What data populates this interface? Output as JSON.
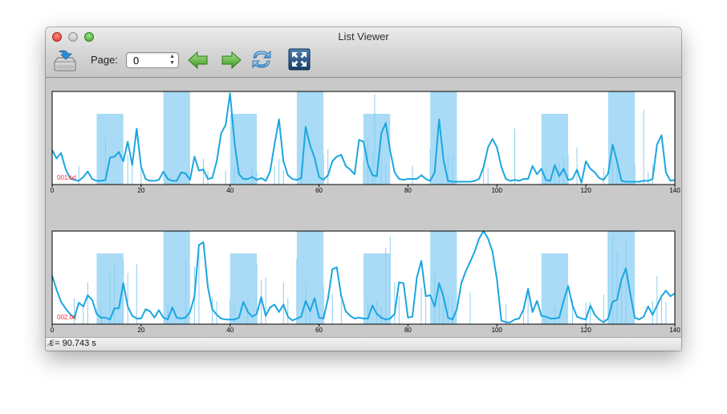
{
  "window": {
    "title": "List Viewer"
  },
  "toolbar": {
    "page_label": "Page:",
    "page_value": "0",
    "icons": [
      "export-tray-icon",
      "previous-arrow-icon",
      "next-arrow-icon",
      "refresh-icon",
      "fullscreen-icon"
    ]
  },
  "status": {
    "text": "t = 90.743 s"
  },
  "colors": {
    "trace": "#1ba6e0",
    "band": "#a9dbf6",
    "spike": "#8ccdf0",
    "label": "#ff2a2a"
  },
  "chart_data": [
    {
      "type": "line",
      "label": "001.txt",
      "xlim": [
        0,
        140
      ],
      "xticks": [
        0,
        20,
        40,
        60,
        80,
        100,
        120,
        140
      ],
      "bands": [
        [
          10,
          16
        ],
        [
          25,
          31
        ],
        [
          40,
          46
        ],
        [
          55,
          61
        ],
        [
          70,
          76
        ],
        [
          85,
          91
        ],
        [
          110,
          116
        ],
        [
          125,
          131
        ]
      ],
      "bandTops": [
        0.24,
        0.0,
        0.24,
        0.0,
        0.24,
        0.0,
        0.24,
        0.0
      ],
      "spikes": [
        [
          6,
          0.8
        ],
        [
          12,
          0.5
        ],
        [
          17,
          0.68
        ],
        [
          18,
          0.75
        ],
        [
          20,
          0.78
        ],
        [
          34,
          0.72
        ],
        [
          35,
          0.85
        ],
        [
          39,
          0.85
        ],
        [
          41,
          0.8
        ],
        [
          45,
          0.8
        ],
        [
          46,
          0.86
        ],
        [
          50,
          0.8
        ],
        [
          51,
          0.72
        ],
        [
          52,
          0.85
        ],
        [
          56,
          0.8
        ],
        [
          61,
          0.68
        ],
        [
          62,
          0.62
        ],
        [
          70,
          0.74
        ],
        [
          71,
          0.5
        ],
        [
          72,
          0.66
        ],
        [
          72.5,
          0.03
        ],
        [
          74,
          0.73
        ],
        [
          75,
          0.78
        ],
        [
          81,
          0.8
        ],
        [
          85,
          0.62
        ],
        [
          89,
          0.68
        ],
        [
          90,
          0.71
        ],
        [
          97,
          0.78
        ],
        [
          98,
          0.83
        ],
        [
          104,
          0.4
        ],
        [
          111,
          0.8
        ],
        [
          113,
          0.78
        ],
        [
          114,
          0.76
        ],
        [
          115,
          0.71
        ],
        [
          116,
          0.68
        ],
        [
          118,
          0.6
        ],
        [
          124,
          0.82
        ],
        [
          126,
          0.72
        ],
        [
          127,
          0.8
        ],
        [
          131,
          0.79
        ],
        [
          133,
          0.2
        ],
        [
          134,
          0.86
        ],
        [
          135,
          0.79
        ]
      ],
      "x": [
        0,
        1,
        2,
        3,
        4,
        5,
        6,
        7,
        8,
        9,
        10,
        11,
        12,
        13,
        14,
        15,
        16,
        17,
        18,
        19,
        20,
        21,
        22,
        23,
        24,
        25,
        26,
        27,
        28,
        29,
        30,
        31,
        32,
        33,
        34,
        35,
        36,
        37,
        38,
        39,
        40,
        41,
        42,
        43,
        44,
        45,
        46,
        47,
        48,
        49,
        50,
        51,
        52,
        53,
        54,
        55,
        56,
        57,
        58,
        59,
        60,
        61,
        62,
        63,
        64,
        65,
        66,
        67,
        68,
        69,
        70,
        71,
        72,
        73,
        74,
        75,
        76,
        77,
        78,
        79,
        80,
        81,
        82,
        83,
        84,
        85,
        86,
        87,
        88,
        89,
        90,
        91,
        92,
        93,
        94,
        95,
        96,
        97,
        98,
        99,
        100,
        101,
        102,
        103,
        104,
        105,
        106,
        107,
        108,
        109,
        110,
        111,
        112,
        113,
        114,
        115,
        116,
        117,
        118,
        119,
        120,
        121,
        122,
        123,
        124,
        125,
        126,
        127,
        128,
        129,
        130,
        131,
        132,
        133,
        134,
        135,
        136,
        137,
        138,
        139,
        140
      ],
      "y": [
        0.37,
        0.28,
        0.34,
        0.17,
        0.07,
        0.05,
        0.04,
        0.08,
        0.14,
        0.06,
        0.04,
        0.04,
        0.05,
        0.29,
        0.3,
        0.35,
        0.25,
        0.46,
        0.21,
        0.6,
        0.19,
        0.06,
        0.04,
        0.04,
        0.05,
        0.14,
        0.06,
        0.04,
        0.04,
        0.13,
        0.12,
        0.05,
        0.3,
        0.15,
        0.16,
        0.06,
        0.07,
        0.25,
        0.55,
        0.64,
        0.98,
        0.45,
        0.11,
        0.06,
        0.06,
        0.08,
        0.05,
        0.07,
        0.04,
        0.14,
        0.43,
        0.7,
        0.25,
        0.1,
        0.06,
        0.05,
        0.07,
        0.62,
        0.42,
        0.29,
        0.08,
        0.05,
        0.1,
        0.25,
        0.3,
        0.32,
        0.2,
        0.16,
        0.11,
        0.48,
        0.46,
        0.22,
        0.1,
        0.09,
        0.55,
        0.66,
        0.36,
        0.13,
        0.06,
        0.05,
        0.06,
        0.06,
        0.06,
        0.1,
        0.06,
        0.04,
        0.13,
        0.7,
        0.26,
        0.04,
        0.03,
        0.03,
        0.03,
        0.03,
        0.03,
        0.04,
        0.06,
        0.19,
        0.4,
        0.49,
        0.4,
        0.19,
        0.06,
        0.04,
        0.05,
        0.04,
        0.06,
        0.06,
        0.2,
        0.11,
        0.17,
        0.05,
        0.04,
        0.21,
        0.09,
        0.17,
        0.05,
        0.06,
        0.16,
        0.02,
        0.25,
        0.17,
        0.13,
        0.07,
        0.05,
        0.12,
        0.43,
        0.25,
        0.04,
        0.03,
        0.03,
        0.03,
        0.03,
        0.04,
        0.04,
        0.06,
        0.43,
        0.53,
        0.13,
        0.04,
        0.05
      ]
    },
    {
      "type": "line",
      "label": "002.txt",
      "xlim": [
        0,
        140
      ],
      "xticks": [
        0,
        20,
        40,
        60,
        80,
        100,
        120,
        140
      ],
      "bands": [
        [
          10,
          16
        ],
        [
          25,
          31
        ],
        [
          40,
          46
        ],
        [
          55,
          61
        ],
        [
          70,
          76
        ],
        [
          85,
          91
        ],
        [
          110,
          116
        ],
        [
          125,
          131
        ]
      ],
      "bandTops": [
        0.24,
        0.0,
        0.24,
        0.0,
        0.24,
        0.0,
        0.24,
        0.0
      ],
      "spikes": [
        [
          5,
          0.72
        ],
        [
          7,
          0.8
        ],
        [
          8,
          0.55
        ],
        [
          11,
          0.74
        ],
        [
          13,
          0.46
        ],
        [
          14,
          0.35
        ],
        [
          16,
          0.3
        ],
        [
          17,
          0.45
        ],
        [
          19,
          0.35
        ],
        [
          26,
          0.78
        ],
        [
          30,
          0.3
        ],
        [
          32,
          0.38
        ],
        [
          33,
          0.16
        ],
        [
          36,
          0.72
        ],
        [
          37,
          0.75
        ],
        [
          40,
          0.74
        ],
        [
          41,
          0.76
        ],
        [
          44,
          0.72
        ],
        [
          46,
          0.35
        ],
        [
          47,
          0.52
        ],
        [
          48,
          0.5
        ],
        [
          52,
          0.55
        ],
        [
          53,
          0.72
        ],
        [
          55,
          0.3
        ],
        [
          57,
          0.55
        ],
        [
          58,
          0.78
        ],
        [
          61,
          0.58
        ],
        [
          63,
          0.67
        ],
        [
          65,
          0.75
        ],
        [
          71,
          0.76
        ],
        [
          73,
          0.75
        ],
        [
          74,
          0.81
        ],
        [
          75,
          0.18
        ],
        [
          76,
          0.06
        ],
        [
          77,
          0.55
        ],
        [
          78,
          0.7
        ],
        [
          83,
          0.61
        ],
        [
          84,
          0.72
        ],
        [
          86,
          0.45
        ],
        [
          87,
          0.6
        ],
        [
          88,
          0.6
        ],
        [
          89,
          0.69
        ],
        [
          90,
          0.7
        ],
        [
          94,
          0.66
        ],
        [
          102,
          0.78
        ],
        [
          106,
          0.8
        ],
        [
          107,
          0.64
        ],
        [
          111,
          0.92
        ],
        [
          113,
          0.81
        ],
        [
          117,
          0.74
        ],
        [
          120,
          0.77
        ],
        [
          121,
          0.76
        ],
        [
          124,
          0.68
        ],
        [
          125,
          0.02
        ],
        [
          126,
          0.05
        ],
        [
          127,
          0.22
        ],
        [
          128,
          0.57
        ],
        [
          129,
          0.1
        ],
        [
          135,
          0.75
        ],
        [
          136,
          0.48
        ],
        [
          137,
          0.73
        ],
        [
          138,
          0.76
        ]
      ],
      "x": [
        0,
        1,
        2,
        3,
        4,
        5,
        6,
        7,
        8,
        9,
        10,
        11,
        12,
        13,
        14,
        15,
        16,
        17,
        18,
        19,
        20,
        21,
        22,
        23,
        24,
        25,
        26,
        27,
        28,
        29,
        30,
        31,
        32,
        33,
        34,
        35,
        36,
        37,
        38,
        39,
        40,
        41,
        42,
        43,
        44,
        45,
        46,
        47,
        48,
        49,
        50,
        51,
        52,
        53,
        54,
        55,
        56,
        57,
        58,
        59,
        60,
        61,
        62,
        63,
        64,
        65,
        66,
        67,
        68,
        69,
        70,
        71,
        72,
        73,
        74,
        75,
        76,
        77,
        78,
        79,
        80,
        81,
        82,
        83,
        84,
        85,
        86,
        87,
        88,
        89,
        90,
        91,
        92,
        93,
        94,
        95,
        96,
        97,
        98,
        99,
        100,
        101,
        102,
        103,
        104,
        105,
        106,
        107,
        108,
        109,
        110,
        111,
        112,
        113,
        114,
        115,
        116,
        117,
        118,
        119,
        120,
        121,
        122,
        123,
        124,
        125,
        126,
        127,
        128,
        129,
        130,
        131,
        132,
        133,
        134,
        135,
        136,
        137,
        138,
        139,
        140
      ],
      "y": [
        0.52,
        0.37,
        0.24,
        0.17,
        0.11,
        0.07,
        0.23,
        0.19,
        0.31,
        0.26,
        0.11,
        0.07,
        0.07,
        0.05,
        0.17,
        0.17,
        0.44,
        0.19,
        0.09,
        0.06,
        0.06,
        0.16,
        0.14,
        0.07,
        0.15,
        0.07,
        0.05,
        0.18,
        0.07,
        0.06,
        0.07,
        0.13,
        0.3,
        0.85,
        0.88,
        0.4,
        0.16,
        0.1,
        0.06,
        0.05,
        0.05,
        0.05,
        0.07,
        0.24,
        0.13,
        0.08,
        0.11,
        0.29,
        0.09,
        0.18,
        0.21,
        0.13,
        0.21,
        0.08,
        0.04,
        0.06,
        0.08,
        0.25,
        0.14,
        0.28,
        0.07,
        0.06,
        0.27,
        0.59,
        0.61,
        0.3,
        0.14,
        0.09,
        0.06,
        0.07,
        0.06,
        0.06,
        0.2,
        0.11,
        0.07,
        0.05,
        0.06,
        0.11,
        0.45,
        0.44,
        0.07,
        0.08,
        0.5,
        0.68,
        0.3,
        0.31,
        0.19,
        0.44,
        0.29,
        0.07,
        0.05,
        0.16,
        0.44,
        0.57,
        0.67,
        0.78,
        0.92,
        1.0,
        0.92,
        0.78,
        0.48,
        0.04,
        0.02,
        0.02,
        0.05,
        0.06,
        0.16,
        0.38,
        0.13,
        0.25,
        0.09,
        0.08,
        0.06,
        0.06,
        0.07,
        0.25,
        0.41,
        0.2,
        0.08,
        0.06,
        0.05,
        0.2,
        0.1,
        0.05,
        0.02,
        0.06,
        0.24,
        0.26,
        0.48,
        0.6,
        0.32,
        0.07,
        0.05,
        0.08,
        0.19,
        0.1,
        0.2,
        0.3,
        0.36,
        0.3,
        0.33
      ]
    }
  ]
}
